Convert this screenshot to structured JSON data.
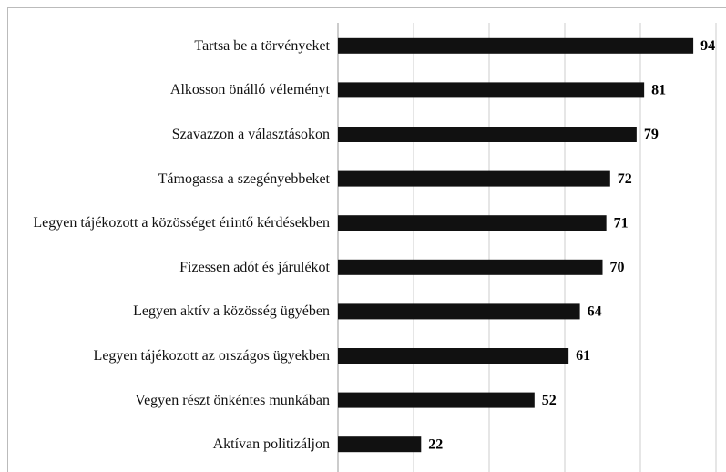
{
  "chart_data": {
    "type": "bar",
    "orientation": "horizontal",
    "categories": [
      "Tartsa be a törvényeket",
      "Alkosson önálló véleményt",
      "Szavazzon a választásokon",
      "Támogassa a szegényebbeket",
      "Legyen tájékozott a közösséget érintő kérdésekben",
      "Fizessen adót és járulékot",
      "Legyen aktív a közösség ügyében",
      "Legyen tájékozott az országos ügyekben",
      "Vegyen részt önkéntes munkában",
      "Aktívan politizáljon"
    ],
    "values": [
      94,
      81,
      79,
      72,
      71,
      70,
      64,
      61,
      52,
      22
    ],
    "color": "#111111",
    "xlim": [
      0,
      100
    ],
    "xticks": [
      0,
      20,
      40,
      60,
      80,
      100
    ],
    "grid": true
  }
}
